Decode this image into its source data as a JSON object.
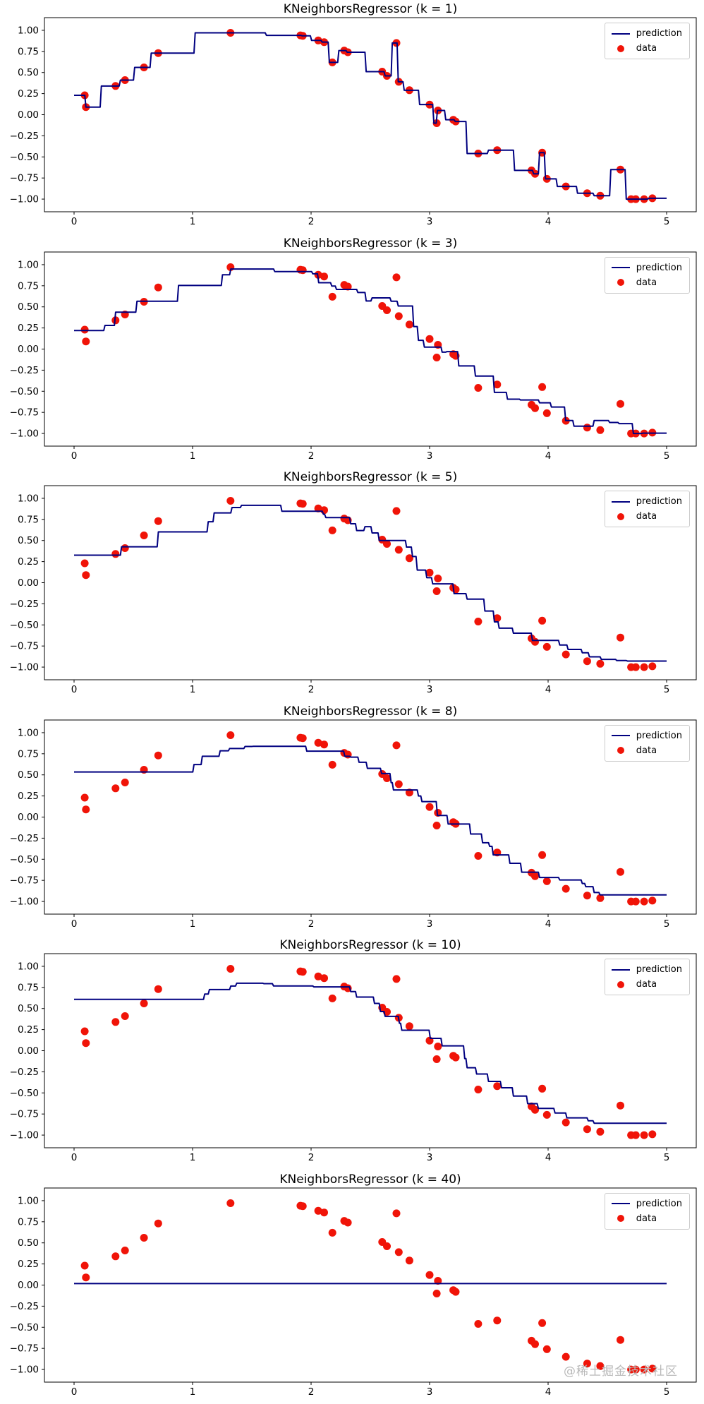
{
  "watermark": "@稀土掘金技术社区",
  "chart_data": {
    "type": "line",
    "description": "KNeighborsRegressor fits (step prediction line) over noisy sine data, 6 subplots with different k",
    "xlim": [
      -0.25,
      5.25
    ],
    "ylim": [
      -1.15,
      1.15
    ],
    "x_ticks": [
      0,
      1,
      2,
      3,
      4,
      5
    ],
    "x_tick_labels": [
      "0",
      "1",
      "2",
      "3",
      "4",
      "5"
    ],
    "y_ticks": [
      1.0,
      0.75,
      0.5,
      0.25,
      0.0,
      -0.25,
      -0.5,
      -0.75,
      -1.0
    ],
    "y_tick_labels": [
      "1.00",
      "0.75",
      "0.50",
      "0.25",
      "0.00",
      "−0.25",
      "−0.50",
      "−0.75",
      "−1.00"
    ],
    "grid": false,
    "legend": {
      "position": "upper right",
      "entries": [
        "prediction",
        "data"
      ]
    },
    "colors": {
      "prediction": "#000080",
      "data": "#f01408"
    },
    "prediction_x_range": [
      0,
      5
    ],
    "prediction_rule": "mean of k nearest data points (uniform weights)",
    "data_points": {
      "x": [
        0.09,
        0.1,
        0.35,
        0.43,
        0.59,
        0.71,
        1.32,
        1.91,
        1.93,
        2.06,
        2.11,
        2.18,
        2.28,
        2.31,
        2.6,
        2.64,
        2.72,
        2.74,
        2.83,
        3.0,
        3.06,
        3.07,
        3.2,
        3.22,
        3.41,
        3.57,
        3.86,
        3.89,
        3.95,
        3.99,
        4.15,
        4.33,
        4.44,
        4.61,
        4.7,
        4.74,
        4.81,
        4.88
      ],
      "y": [
        0.23,
        0.09,
        0.34,
        0.41,
        0.56,
        0.73,
        0.97,
        0.94,
        0.935,
        0.88,
        0.86,
        0.62,
        0.76,
        0.74,
        0.51,
        0.46,
        0.85,
        0.39,
        0.29,
        0.12,
        -0.1,
        0.05,
        -0.06,
        -0.08,
        -0.46,
        -0.42,
        -0.66,
        -0.7,
        -0.45,
        -0.76,
        -0.85,
        -0.93,
        -0.96,
        -0.65,
        -1.0,
        -1.0,
        -1.0,
        -0.99
      ]
    },
    "subplots": [
      {
        "title": "KNeighborsRegressor (k = 1)",
        "k": 1
      },
      {
        "title": "KNeighborsRegressor (k = 3)",
        "k": 3
      },
      {
        "title": "KNeighborsRegressor (k = 5)",
        "k": 5
      },
      {
        "title": "KNeighborsRegressor (k = 8)",
        "k": 8
      },
      {
        "title": "KNeighborsRegressor (k = 10)",
        "k": 10
      },
      {
        "title": "KNeighborsRegressor (k = 40)",
        "k": 40
      }
    ]
  }
}
